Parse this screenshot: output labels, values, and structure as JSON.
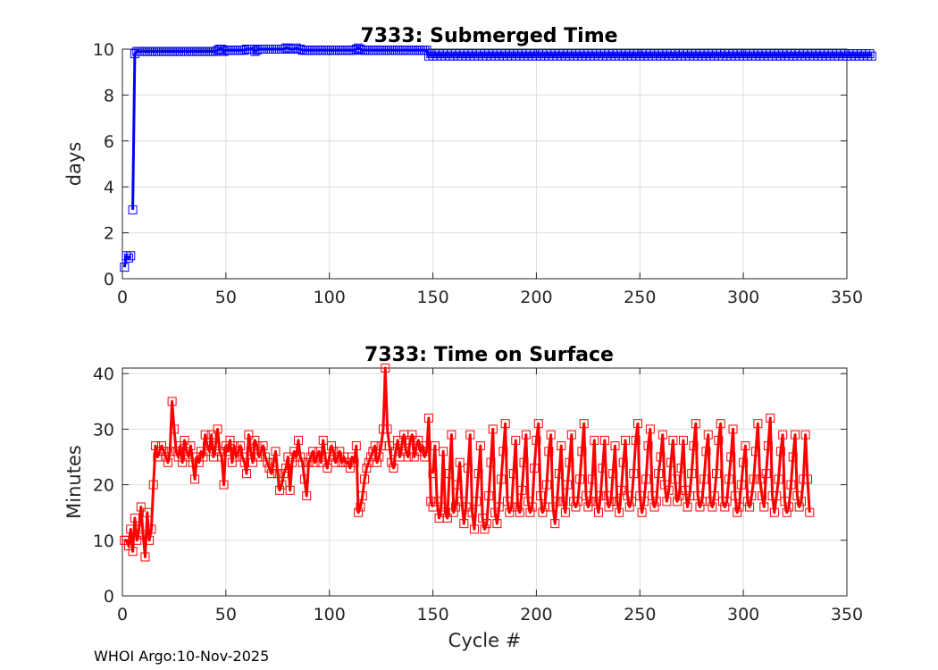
{
  "chart_data": [
    {
      "type": "line",
      "title": "7333: Submerged Time",
      "xlabel": "",
      "ylabel": "days",
      "xlim": [
        0,
        350
      ],
      "ylim": [
        0,
        10
      ],
      "xticks": [
        0,
        50,
        100,
        150,
        200,
        250,
        300,
        350
      ],
      "yticks": [
        0,
        2,
        4,
        6,
        8,
        10
      ],
      "grid": true,
      "marker": "square",
      "series": [
        {
          "name": "Submerged Time",
          "color": "#0000ff",
          "segments": [
            {
              "x": [
                1,
                2,
                3,
                4
              ],
              "values": [
                0.5,
                1.0,
                0.9,
                1.0
              ]
            },
            {
              "x_start": 5,
              "values": [
                3.0,
                9.8,
                9.9,
                9.9,
                9.9,
                9.9,
                9.9,
                9.9,
                9.9,
                9.9,
                9.9,
                9.9,
                9.9,
                9.9,
                9.9,
                9.9,
                9.9,
                9.9,
                9.9,
                9.9,
                9.9,
                9.9,
                9.9,
                9.9,
                9.9,
                9.9,
                9.9,
                9.9,
                9.9,
                9.9,
                9.9,
                9.9,
                9.9,
                9.9,
                9.9,
                9.9,
                9.9,
                9.9,
                9.9,
                9.9,
                9.9,
                9.95,
                10.0,
                10.0,
                9.9,
                9.95,
                9.95,
                9.95,
                9.95,
                9.95,
                9.95,
                9.95,
                9.95,
                9.95,
                9.95,
                10.0,
                10.0,
                10.0,
                10.0,
                9.9,
                9.95,
                10.0,
                10.0,
                10.0,
                10.0,
                10.0,
                10.0,
                10.0,
                10.0,
                10.0,
                10.0,
                10.0,
                10.0,
                10.0,
                10.05,
                10.05,
                10.0,
                10.0,
                10.0,
                10.05,
                10.0,
                10.0,
                9.95,
                9.95,
                9.95,
                9.95,
                9.95,
                9.95,
                9.95,
                9.95,
                9.95,
                9.95,
                9.95,
                9.95,
                9.95,
                9.95,
                9.95,
                9.95,
                9.95,
                9.95,
                9.95,
                9.95,
                9.95,
                9.95,
                9.95,
                9.95,
                9.95,
                9.95,
                10.0,
                10.05,
                10.0,
                9.95,
                9.95,
                9.95,
                9.95,
                9.95,
                9.95,
                9.95,
                9.95,
                9.95,
                9.95,
                9.95,
                9.95,
                9.95,
                9.95,
                9.95,
                9.95,
                9.95,
                9.95,
                9.95,
                9.95,
                9.95,
                9.95,
                9.95,
                9.95,
                9.95,
                9.95,
                9.95,
                9.95,
                9.95,
                9.95,
                9.95,
                9.95,
                9.7,
                9.8,
                9.7,
                9.8,
                9.7,
                9.8,
                9.7,
                9.8,
                9.7,
                9.8,
                9.7,
                9.8,
                9.7,
                9.8,
                9.7,
                9.8,
                9.7,
                9.8,
                9.7,
                9.8,
                9.7,
                9.8,
                9.7,
                9.8,
                9.7,
                9.8,
                9.7,
                9.8,
                9.7,
                9.8,
                9.7,
                9.8,
                9.7,
                9.8,
                9.7,
                9.8,
                9.7,
                9.8,
                9.7,
                9.8,
                9.7,
                9.8,
                9.7,
                9.8,
                9.7,
                9.8,
                9.7,
                9.8,
                9.7,
                9.8,
                9.7,
                9.8,
                9.7,
                9.8,
                9.7,
                9.8,
                9.7,
                9.8,
                9.7,
                9.8,
                9.7,
                9.8,
                9.7,
                9.8,
                9.7,
                9.8,
                9.7,
                9.8,
                9.7,
                9.8,
                9.7,
                9.8,
                9.7,
                9.8,
                9.7,
                9.8,
                9.7,
                9.8,
                9.7,
                9.8,
                9.7,
                9.8,
                9.7,
                9.8,
                9.7,
                9.8,
                9.7,
                9.8,
                9.7,
                9.8,
                9.7,
                9.8,
                9.7,
                9.8,
                9.7,
                9.8,
                9.7,
                9.8,
                9.7,
                9.8,
                9.7,
                9.8,
                9.7,
                9.8,
                9.7,
                9.8,
                9.7,
                9.8,
                9.7,
                9.8,
                9.7,
                9.8,
                9.7,
                9.8,
                9.7,
                9.8,
                9.7,
                9.8,
                9.7,
                9.8,
                9.7,
                9.8,
                9.7,
                9.8,
                9.7,
                9.8,
                9.7,
                9.8,
                9.7,
                9.8,
                9.7,
                9.8,
                9.7,
                9.8,
                9.7,
                9.8,
                9.7,
                9.8,
                9.7,
                9.8,
                9.7,
                9.8,
                9.7,
                9.8,
                9.7,
                9.8,
                9.7,
                9.8,
                9.7,
                9.8,
                9.7,
                9.8,
                9.7,
                9.8,
                9.7,
                9.8,
                9.7,
                9.8,
                9.7,
                9.8,
                9.7,
                9.8,
                9.7,
                9.8,
                9.7,
                9.8,
                9.7,
                9.8,
                9.7,
                9.8,
                9.7,
                9.8,
                9.7,
                9.8,
                9.7,
                9.8,
                9.7,
                9.8,
                9.7,
                9.8,
                9.7,
                9.8,
                9.7,
                9.8,
                9.7,
                9.8,
                9.7,
                9.8,
                9.7,
                9.8,
                9.7,
                9.8,
                9.7,
                9.8,
                9.7,
                9.8,
                9.7,
                9.8,
                9.7,
                9.8,
                9.7,
                9.8,
                9.7,
                9.8,
                9.7,
                9.8,
                9.7,
                9.8,
                9.7,
                9.8,
                9.7,
                9.8,
                9.7,
                9.8,
                9.7
              ]
            }
          ]
        }
      ]
    },
    {
      "type": "line",
      "title": "7333: Time on Surface",
      "xlabel": "Cycle #",
      "ylabel": "Minutes",
      "xlim": [
        0,
        350
      ],
      "ylim": [
        0,
        41
      ],
      "xticks": [
        0,
        50,
        100,
        150,
        200,
        250,
        300,
        350
      ],
      "yticks": [
        0,
        10,
        20,
        30,
        40
      ],
      "grid": true,
      "marker": "square",
      "series": [
        {
          "name": "Time on Surface",
          "color": "#ff0000",
          "segments": [
            {
              "x_start": 1,
              "values": [
                10,
                10,
                9,
                12,
                8,
                14,
                10,
                12,
                16,
                11,
                7,
                15,
                10,
                12,
                20,
                27,
                25,
                26,
                27,
                26,
                25,
                24,
                26,
                35,
                30,
                26,
                25,
                27,
                24,
                28,
                26,
                25,
                27,
                24,
                21,
                25,
                24,
                26,
                25,
                29,
                27,
                26,
                29,
                25,
                27,
                30,
                26,
                25,
                20,
                27,
                26,
                28,
                24,
                27,
                25,
                26,
                27,
                25,
                24,
                22,
                29,
                26,
                24,
                28,
                27,
                25,
                26,
                27,
                25,
                24,
                23,
                22,
                24,
                26,
                22,
                19,
                20,
                22,
                23,
                25,
                19,
                24,
                26,
                25,
                28,
                25,
                24,
                21,
                18,
                24,
                25,
                26,
                24,
                25,
                26,
                24,
                28,
                25,
                23,
                25,
                27,
                26,
                24,
                25,
                26,
                24,
                25,
                24,
                24,
                23,
                25,
                24,
                27,
                15,
                16,
                18,
                21,
                23,
                24,
                25,
                26,
                27,
                24,
                25,
                27,
                30,
                41,
                30,
                27,
                24,
                23,
                26,
                28,
                25,
                27,
                29,
                26,
                25,
                28,
                29,
                25,
                27,
                28,
                26,
                27,
                25,
                26,
                32,
                17,
                16
              ]
            },
            {
              "x_start": 150,
              "values": [
                22,
                27,
                17,
                14,
                16,
                26,
                15,
                14,
                22,
                29,
                15,
                16,
                20,
                24,
                17,
                13,
                16,
                23,
                29,
                15,
                12,
                17,
                22,
                27,
                14,
                12,
                13,
                18,
                24,
                30,
                15,
                13,
                16,
                21,
                26,
                31,
                17,
                15,
                16,
                22,
                28,
                16,
                15,
                19,
                24,
                29,
                17,
                15,
                16,
                23,
                28,
                31,
                18,
                15,
                16,
                20,
                26,
                29,
                16,
                13,
                17,
                22,
                27,
                17,
                15,
                20,
                24,
                29,
                17,
                16,
                17,
                21,
                26,
                31,
                18,
                16,
                17,
                21,
                28,
                17,
                15,
                18,
                23,
                28,
                18,
                16,
                17,
                22,
                27,
                17,
                15,
                19,
                24,
                28,
                18,
                16,
                17,
                22,
                28,
                31,
                18,
                15,
                17,
                21,
                27,
                30,
                18,
                16,
                17,
                22,
                25,
                29,
                20,
                17,
                19,
                24,
                28,
                21,
                17,
                18,
                23,
                28,
                19,
                16,
                18,
                22,
                27,
                31,
                18,
                16,
                17,
                21,
                26,
                29,
                17,
                16,
                18,
                22,
                28,
                31,
                17,
                16,
                17,
                21,
                25,
                30,
                18,
                15,
                16,
                20,
                24,
                27,
                17,
                16,
                18,
                21,
                26,
                31,
                21,
                18,
                16,
                22,
                27,
                32,
                18,
                15,
                18,
                21,
                26,
                29,
                17,
                15,
                16,
                20,
                25,
                29,
                18,
                16,
                17,
                21,
                29,
                21,
                15
              ]
            }
          ]
        }
      ]
    }
  ],
  "footer": "WHOI Argo:10-Nov-2025"
}
